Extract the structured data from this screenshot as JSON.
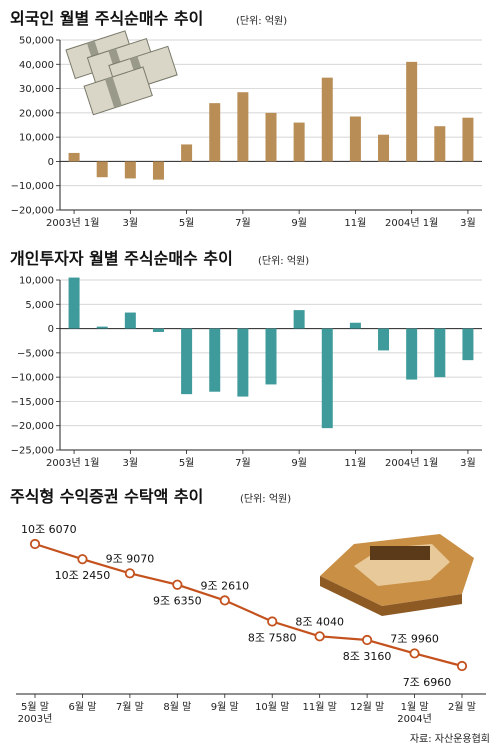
{
  "colors": {
    "foreign_bar": "#b98d56",
    "retail_bar": "#3f9a9b",
    "line": "#c4521e",
    "axis": "#222222",
    "grid": "#c8c8c8"
  },
  "source": "자료: 자산운용협회",
  "chart_data": [
    {
      "type": "bar",
      "title": "외국인 월별 주식순매수 추이",
      "unit": "(단위: 억원)",
      "categories": [
        "2003-01",
        "2003-02",
        "2003-03",
        "2003-04",
        "2003-05",
        "2003-06",
        "2003-07",
        "2003-08",
        "2003-09",
        "2003-10",
        "2003-11",
        "2003-12",
        "2004-01",
        "2004-02",
        "2004-03"
      ],
      "values": [
        3500,
        -6500,
        -7000,
        -7500,
        7000,
        24000,
        28500,
        20000,
        16000,
        34500,
        18500,
        11000,
        41000,
        14500,
        18000
      ],
      "xticks": [
        {
          "i": 0,
          "label": "2003년 1월"
        },
        {
          "i": 2,
          "label": "3월"
        },
        {
          "i": 4,
          "label": "5월"
        },
        {
          "i": 6,
          "label": "7월"
        },
        {
          "i": 8,
          "label": "9월"
        },
        {
          "i": 10,
          "label": "11월"
        },
        {
          "i": 12,
          "label": "2004년 1월"
        },
        {
          "i": 14,
          "label": "3월"
        }
      ],
      "yticks": [
        50000,
        40000,
        30000,
        20000,
        10000,
        0,
        -10000,
        -20000
      ],
      "ytick_labels": [
        "50,000",
        "40,000",
        "30,000",
        "20,000",
        "10,000",
        "0",
        "−10,000",
        "−20,000"
      ],
      "ylim": [
        -20000,
        50000
      ],
      "grid": true
    },
    {
      "type": "bar",
      "title": "개인투자자 월별 주식순매수 추이",
      "unit": "(단위: 억원)",
      "categories": [
        "2003-01",
        "2003-02",
        "2003-03",
        "2003-04",
        "2003-05",
        "2003-06",
        "2003-07",
        "2003-08",
        "2003-09",
        "2003-10",
        "2003-11",
        "2003-12",
        "2004-01",
        "2004-02",
        "2004-03"
      ],
      "values": [
        10500,
        400,
        3300,
        -700,
        -13500,
        -13000,
        -14000,
        -11500,
        3800,
        -20500,
        1200,
        -4500,
        -10500,
        -10000,
        -6500
      ],
      "xticks": [
        {
          "i": 0,
          "label": "2003년 1월"
        },
        {
          "i": 2,
          "label": "3월"
        },
        {
          "i": 4,
          "label": "5월"
        },
        {
          "i": 6,
          "label": "7월"
        },
        {
          "i": 8,
          "label": "9월"
        },
        {
          "i": 10,
          "label": "11월"
        },
        {
          "i": 12,
          "label": "2004년 1월"
        },
        {
          "i": 14,
          "label": "3월"
        }
      ],
      "yticks": [
        10000,
        5000,
        0,
        -5000,
        -10000,
        -15000,
        -20000,
        -25000
      ],
      "ytick_labels": [
        "10,000",
        "5,000",
        "0",
        "−5,000",
        "−10,000",
        "−15,000",
        "−20,000",
        "−25,000"
      ],
      "ylim": [
        -25000,
        10000
      ],
      "grid": true
    },
    {
      "type": "line",
      "title": "주식형 수익증권 수탁액 추이",
      "unit": "(단위: 억원)",
      "x": [
        "5월 말",
        "6월 말",
        "7월 말",
        "8월 말",
        "9월 말",
        "10월 말",
        "11월 말",
        "12월 말",
        "1월 말",
        "2월 말"
      ],
      "year_labels": [
        {
          "i": 0,
          "label": "2003년"
        },
        {
          "i": 8,
          "label": "2004년"
        }
      ],
      "values": [
        106070,
        102450,
        99070,
        96350,
        92610,
        87580,
        84040,
        83160,
        79960,
        76960
      ],
      "data_labels": [
        "10조 6070",
        "10조 2450",
        "9조 9070",
        "9조 6350",
        "9조 2610",
        "8조 7580",
        "8조 4040",
        "8조 3160",
        "7조 9960",
        "7조 6960"
      ],
      "label_side": [
        "above",
        "below",
        "above",
        "below",
        "above",
        "below",
        "above",
        "below",
        "above",
        "below"
      ],
      "grid": false
    }
  ]
}
